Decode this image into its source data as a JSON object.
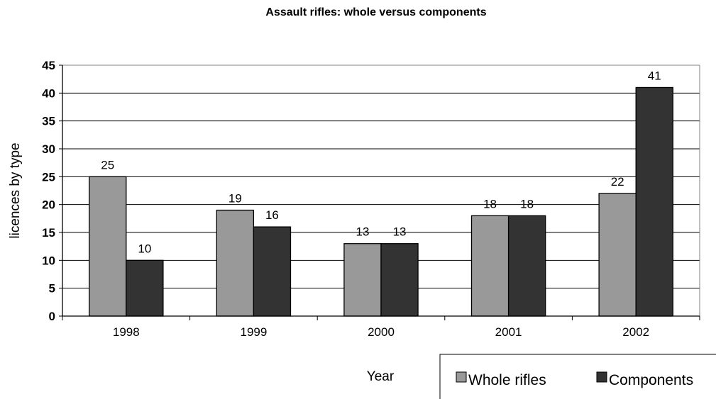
{
  "chart_data": {
    "type": "bar",
    "title": "Assault rifles: whole versus components",
    "xlabel": "Year",
    "ylabel": "licences by type",
    "categories": [
      "1998",
      "1999",
      "2000",
      "2001",
      "2002"
    ],
    "series": [
      {
        "name": "Whole rifles",
        "values": [
          25,
          19,
          13,
          18,
          22
        ],
        "color": "#999999"
      },
      {
        "name": "Components",
        "values": [
          10,
          16,
          13,
          18,
          41
        ],
        "color": "#333333"
      }
    ],
    "ylim": [
      0,
      45
    ],
    "yticks": [
      "0",
      "5",
      "10",
      "15",
      "20",
      "25",
      "30",
      "35",
      "40",
      "45"
    ],
    "grid": true,
    "legend_position": "bottom-right",
    "data_labels": true
  }
}
